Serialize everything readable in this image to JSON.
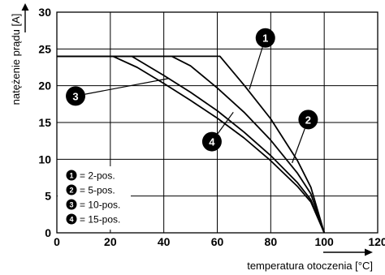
{
  "chart_data": {
    "type": "line",
    "xlabel": "temperatura otoczenia [°C]",
    "ylabel": "natężenie prądu [A]",
    "xlim": [
      0,
      120
    ],
    "ylim": [
      0,
      30
    ],
    "xticks": [
      0,
      20,
      40,
      60,
      80,
      100,
      120
    ],
    "yticks": [
      0,
      5,
      10,
      15,
      20,
      25,
      30
    ],
    "grid": true,
    "legend_position": "bottom-left",
    "series": [
      {
        "badge": "1",
        "name": "2-pos.",
        "x": [
          0,
          61,
          70,
          80,
          90,
          95,
          100
        ],
        "y": [
          24,
          24,
          20.1,
          15.5,
          9.8,
          6.2,
          0
        ]
      },
      {
        "badge": "2",
        "name": "5-pos.",
        "x": [
          0,
          43,
          50,
          60,
          70,
          80,
          90,
          95,
          100
        ],
        "y": [
          24,
          24,
          22.7,
          19.7,
          16.4,
          12.6,
          8.1,
          5.3,
          0
        ]
      },
      {
        "badge": "3",
        "name": "10-pos.",
        "x": [
          0,
          28,
          40,
          50,
          60,
          70,
          80,
          90,
          95,
          100
        ],
        "y": [
          24,
          24,
          21.4,
          19.1,
          16.6,
          13.7,
          10.5,
          6.8,
          4.5,
          0
        ]
      },
      {
        "badge": "4",
        "name": "15-pos.",
        "x": [
          0,
          21,
          30,
          40,
          50,
          60,
          70,
          80,
          90,
          95,
          100
        ],
        "y": [
          24,
          24,
          22.5,
          20.3,
          18.0,
          15.6,
          12.9,
          9.8,
          6.3,
          4.2,
          0
        ]
      }
    ],
    "legend": [
      {
        "badge": "1",
        "text": "= 2-pos."
      },
      {
        "badge": "2",
        "text": "= 5-pos."
      },
      {
        "badge": "3",
        "text": "= 10-pos."
      },
      {
        "badge": "4",
        "text": "= 15-pos."
      }
    ],
    "callouts": [
      {
        "badge": "1",
        "label_x": 78,
        "label_y": 26.5,
        "target_x": 72,
        "target_y": 19.5
      },
      {
        "badge": "2",
        "label_x": 94,
        "label_y": 15.4,
        "target_x": 88,
        "target_y": 9.5
      },
      {
        "badge": "3",
        "label_x": 7,
        "label_y": 18.6,
        "target_x": 42,
        "target_y": 21.0
      },
      {
        "badge": "4",
        "label_x": 58,
        "label_y": 12.4,
        "target_x": 66,
        "target_y": 16.4
      }
    ]
  }
}
